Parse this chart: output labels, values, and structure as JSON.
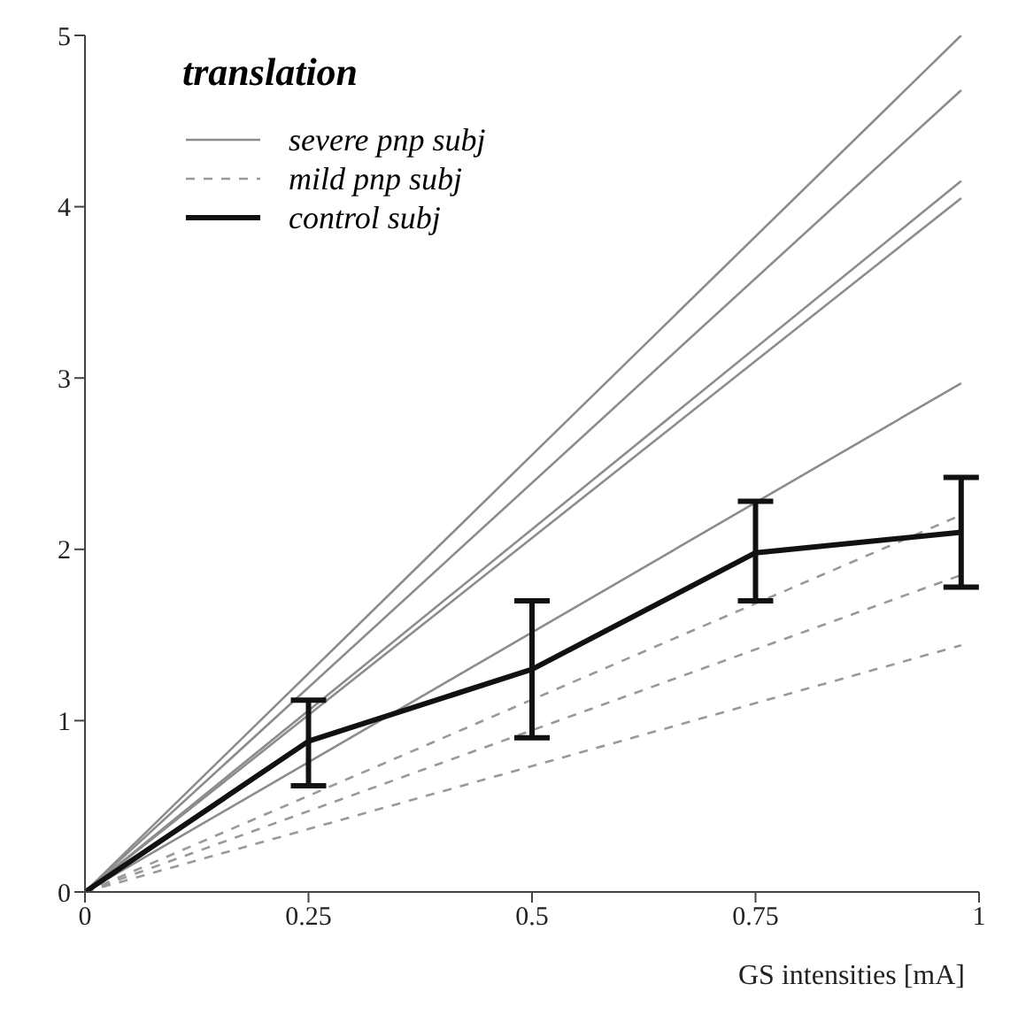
{
  "chart_data": {
    "type": "line",
    "title": "translation",
    "xlabel": "GS intensities [mA]",
    "xlim": [
      0,
      1
    ],
    "xticks": [
      0,
      0.25,
      0.5,
      0.75,
      1
    ],
    "ylim": [
      0,
      5
    ],
    "yticks": [
      0,
      1,
      2,
      3,
      4,
      5
    ],
    "grid": false,
    "legend": "top left",
    "marker": "none",
    "series": [
      {
        "name": "severe pnp  subj",
        "color": "#8c8c8c",
        "line_style": "solid",
        "x": [
          0,
          0.98
        ],
        "values": [
          0,
          5.0
        ]
      },
      {
        "color": "#8c8c8c",
        "line_style": "solid",
        "x": [
          0,
          0.98
        ],
        "values": [
          0,
          4.68
        ]
      },
      {
        "color": "#8c8c8c",
        "line_style": "solid",
        "x": [
          0,
          0.98
        ],
        "values": [
          0,
          4.15
        ]
      },
      {
        "color": "#8c8c8c",
        "line_style": "solid",
        "x": [
          0,
          0.98
        ],
        "values": [
          0,
          4.05
        ]
      },
      {
        "color": "#8c8c8c",
        "line_style": "solid",
        "x": [
          0,
          0.98
        ],
        "values": [
          0,
          2.97
        ]
      },
      {
        "name": "mild pnp  subj",
        "color": "#999999",
        "line_style": "dashed",
        "x": [
          0,
          0.98
        ],
        "values": [
          0,
          2.2
        ]
      },
      {
        "color": "#999999",
        "line_style": "dashed",
        "x": [
          0,
          0.98
        ],
        "values": [
          0,
          1.85
        ]
      },
      {
        "color": "#999999",
        "line_style": "dashed",
        "x": [
          0,
          0.98
        ],
        "values": [
          0,
          1.44
        ]
      },
      {
        "name": "control subj",
        "color": "#111111",
        "line_style": "solid",
        "x": [
          0,
          0.25,
          0.5,
          0.75,
          0.98
        ],
        "values": [
          0,
          0.88,
          1.3,
          1.98,
          2.1
        ],
        "errors": [
          null,
          [
            0.62,
            1.12
          ],
          [
            0.9,
            1.7
          ],
          [
            1.7,
            2.28
          ],
          [
            1.78,
            2.42
          ]
        ]
      }
    ]
  }
}
